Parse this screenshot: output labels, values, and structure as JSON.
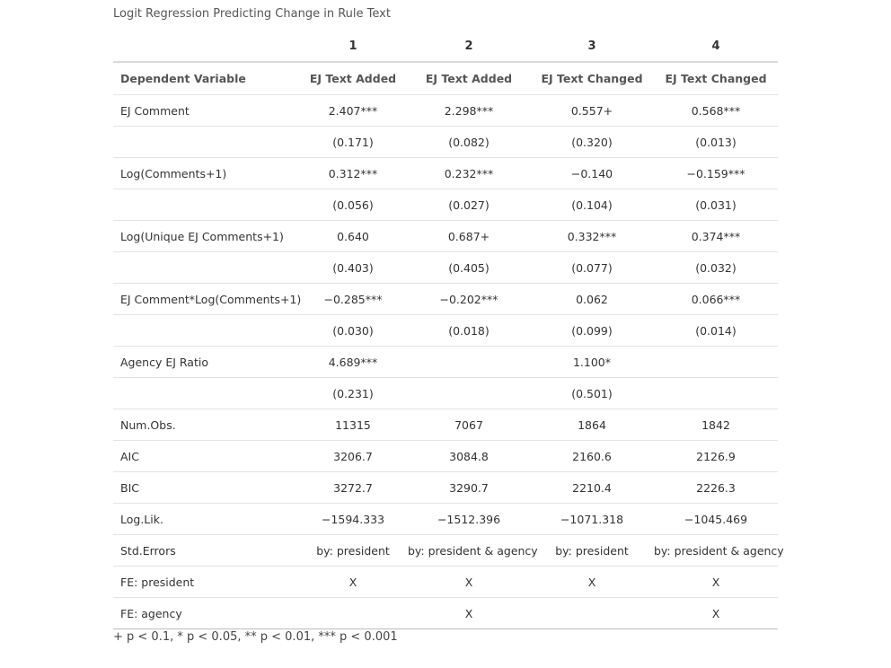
{
  "caption": "Logit Regression Predicting Change in Rule Text",
  "header": {
    "model_numbers": [
      "",
      "1",
      "2",
      "3",
      "4"
    ],
    "dependent_label": "Dependent Variable",
    "dependent_values": [
      "EJ Text Added",
      "EJ Text Added",
      "EJ Text Changed",
      "EJ Text Changed"
    ]
  },
  "rows": [
    {
      "label": "EJ Comment",
      "cells": [
        "2.407***",
        "2.298***",
        "0.557+",
        "0.568***"
      ]
    },
    {
      "label": "",
      "cells": [
        "(0.171)",
        "(0.082)",
        "(0.320)",
        "(0.013)"
      ]
    },
    {
      "label": "Log(Comments+1)",
      "cells": [
        "0.312***",
        "0.232***",
        "−0.140",
        "−0.159***"
      ]
    },
    {
      "label": "",
      "cells": [
        "(0.056)",
        "(0.027)",
        "(0.104)",
        "(0.031)"
      ]
    },
    {
      "label": "Log(Unique EJ Comments+1)",
      "cells": [
        "0.640",
        "0.687+",
        "0.332***",
        "0.374***"
      ]
    },
    {
      "label": "",
      "cells": [
        "(0.403)",
        "(0.405)",
        "(0.077)",
        "(0.032)"
      ]
    },
    {
      "label": "EJ Comment*Log(Comments+1)",
      "cells": [
        "−0.285***",
        "−0.202***",
        "0.062",
        "0.066***"
      ]
    },
    {
      "label": "",
      "cells": [
        "(0.030)",
        "(0.018)",
        "(0.099)",
        "(0.014)"
      ]
    },
    {
      "label": "Agency EJ Ratio",
      "cells": [
        "4.689***",
        "",
        "1.100*",
        ""
      ]
    },
    {
      "label": "",
      "cells": [
        "(0.231)",
        "",
        "(0.501)",
        ""
      ]
    },
    {
      "label": "Num.Obs.",
      "cells": [
        "11315",
        "7067",
        "1864",
        "1842"
      ]
    },
    {
      "label": "AIC",
      "cells": [
        "3206.7",
        "3084.8",
        "2160.6",
        "2126.9"
      ]
    },
    {
      "label": "BIC",
      "cells": [
        "3272.7",
        "3290.7",
        "2210.4",
        "2226.3"
      ]
    },
    {
      "label": "Log.Lik.",
      "cells": [
        "−1594.333",
        "−1512.396",
        "−1071.318",
        "−1045.469"
      ]
    },
    {
      "label": "Std.Errors",
      "cells": [
        "by: president",
        "by: president & agency",
        "by: president",
        "by: president & agency"
      ]
    },
    {
      "label": "FE: president",
      "cells": [
        "X",
        "X",
        "X",
        "X"
      ]
    },
    {
      "label": "FE: agency",
      "cells": [
        "",
        "X",
        "",
        "X"
      ]
    }
  ],
  "footnote": "+ p < 0.1, * p < 0.05, ** p < 0.01, *** p < 0.001"
}
